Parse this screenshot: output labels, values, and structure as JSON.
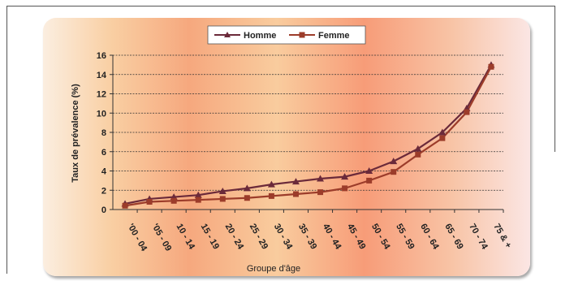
{
  "chart_data": {
    "type": "line",
    "title": "",
    "xlabel": "Groupe d'âge",
    "ylabel": "Taux de prévalence (%)",
    "ylim": [
      0,
      16
    ],
    "yticks": [
      0,
      2,
      4,
      6,
      8,
      10,
      12,
      14,
      16
    ],
    "grid": true,
    "legend_position": "top-center",
    "categories": [
      "'00 - 04",
      "'05 - 09",
      "10 - 14",
      "15 - 19",
      "20 - 24",
      "25 - 29",
      "30 - 34",
      "35 - 39",
      "40 - 44",
      "45 - 49",
      "50 - 54",
      "55 - 59",
      "60 - 64",
      "65 - 69",
      "70 - 74",
      "75 & +"
    ],
    "series": [
      {
        "name": "Homme",
        "color": "#6b2a3a",
        "marker": "triangle",
        "values": [
          0.6,
          1.1,
          1.3,
          1.5,
          1.9,
          2.2,
          2.6,
          2.9,
          3.2,
          3.4,
          4.0,
          5.0,
          6.3,
          8.0,
          10.5,
          15.0
        ]
      },
      {
        "name": "Femme",
        "color": "#9c3c2a",
        "marker": "square",
        "values": [
          0.4,
          0.8,
          0.9,
          1.0,
          1.1,
          1.2,
          1.4,
          1.6,
          1.8,
          2.2,
          3.0,
          3.9,
          5.7,
          7.4,
          10.1,
          14.8
        ]
      }
    ]
  }
}
